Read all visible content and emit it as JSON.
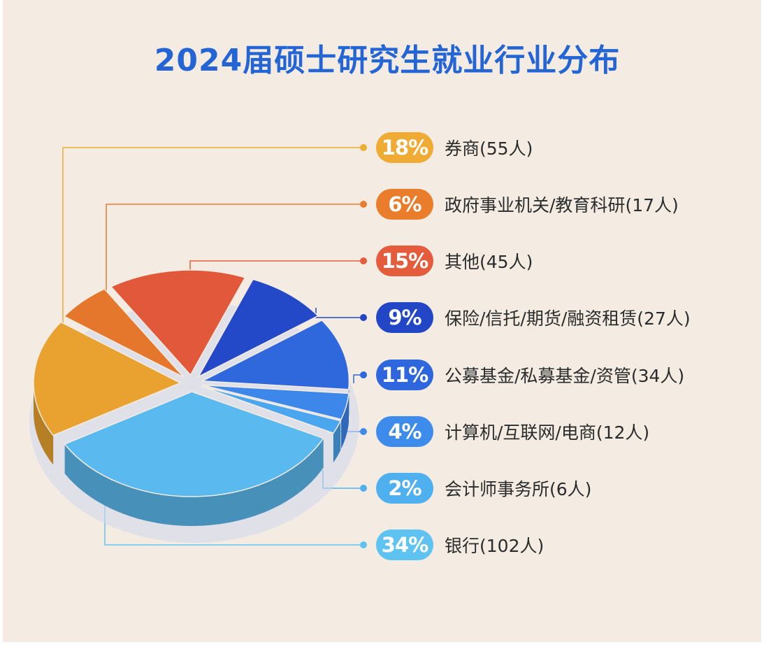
{
  "title": "2024届硕士研究生就业行业分布",
  "chart_data": {
    "type": "pie",
    "title": "2024届硕士研究生就业行业分布",
    "slices": [
      {
        "name": "券商",
        "percent": 18,
        "percent_label": "18%",
        "count_label": "(55人)",
        "value": 55,
        "color": "#e9a230",
        "pill_color": "#efab33"
      },
      {
        "name": "政府事业机关/教育科研",
        "percent": 6,
        "percent_label": "6%",
        "count_label": "(17人)",
        "value": 17,
        "color": "#e4772b",
        "pill_color": "#ea7d2c"
      },
      {
        "name": "其他",
        "percent": 15,
        "percent_label": "15%",
        "count_label": "(45人)",
        "value": 45,
        "color": "#e1583b",
        "pill_color": "#e45c3c"
      },
      {
        "name": "保险/信托/期货/融资租赁",
        "percent": 9,
        "percent_label": "9%",
        "count_label": "(27人)",
        "value": 27,
        "color": "#2449c8",
        "pill_color": "#2246c6"
      },
      {
        "name": "公募基金/私募基金/资管",
        "percent": 11,
        "percent_label": "11%",
        "count_label": "(34人)",
        "value": 34,
        "color": "#2f68dd",
        "pill_color": "#2e66dd"
      },
      {
        "name": "计算机/互联网/电商",
        "percent": 4,
        "percent_label": "4%",
        "count_label": "(12人)",
        "value": 12,
        "color": "#3d87ea",
        "pill_color": "#3d8bea"
      },
      {
        "name": "会计师事务所",
        "percent": 2,
        "percent_label": "2%",
        "count_label": "(6人)",
        "value": 6,
        "color": "#4aa6ee",
        "pill_color": "#4fb0ef"
      },
      {
        "name": "银行",
        "percent": 34,
        "percent_label": "34%",
        "count_label": "(102人)",
        "value": 102,
        "color": "#5ab9ee",
        "pill_color": "#5fc3f1"
      }
    ]
  }
}
